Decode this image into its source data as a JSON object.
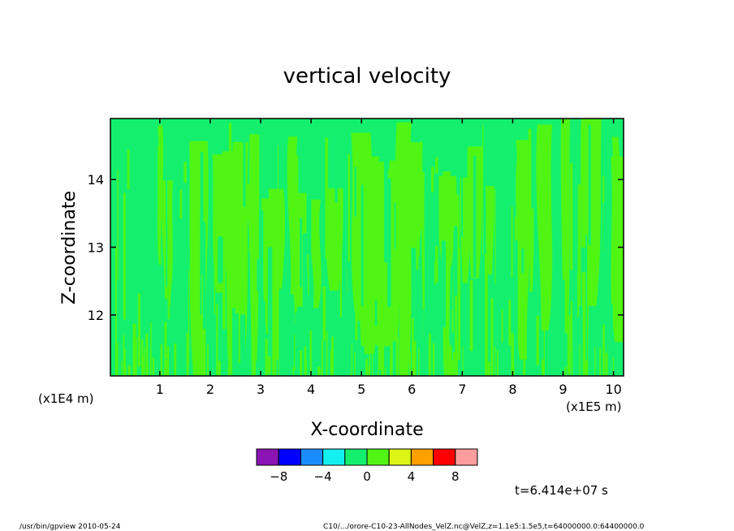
{
  "chart_data": {
    "type": "heatmap",
    "title": "vertical velocity",
    "xlabel": "X-coordinate",
    "ylabel": "Z-coordinate",
    "x_unit_label": "(x1E5 m)",
    "y_unit_label": "(x1E4 m)",
    "xlim": [
      0.02,
      10.2
    ],
    "ylim": [
      11.1,
      14.9
    ],
    "x_ticks": [
      1,
      2,
      3,
      4,
      5,
      6,
      7,
      8,
      9,
      10
    ],
    "y_ticks": [
      12,
      13,
      14
    ],
    "x_tick_labels": [
      "1",
      "2",
      "3",
      "4",
      "5",
      "6",
      "7",
      "8",
      "9",
      "10"
    ],
    "y_tick_labels": [
      "12",
      "13",
      "14"
    ],
    "colorbar": {
      "colors": [
        "#8a14b4",
        "#0000ff",
        "#1a8cff",
        "#14f0f0",
        "#14f06e",
        "#50f514",
        "#dcf514",
        "#ffa000",
        "#ff0000",
        "#ff9c9c"
      ],
      "tick_values": [
        -8,
        -4,
        0,
        4,
        8
      ],
      "tick_labels": [
        "−8",
        "−4",
        "0",
        "4",
        "8"
      ]
    },
    "field": {
      "background_color": "#14f06e",
      "positive_color": "#50f514",
      "value_range_visible": [
        0,
        2
      ]
    },
    "time_label": "t=6.414e+07 s"
  },
  "footer": {
    "left": "/usr/bin/gpview   2010-05-24",
    "right": "C10/.../orore-C10-23-AllNodes_VelZ.nc@VelZ,z=1.1e5:1.5e5,t=64000000.0:64400000.0"
  }
}
